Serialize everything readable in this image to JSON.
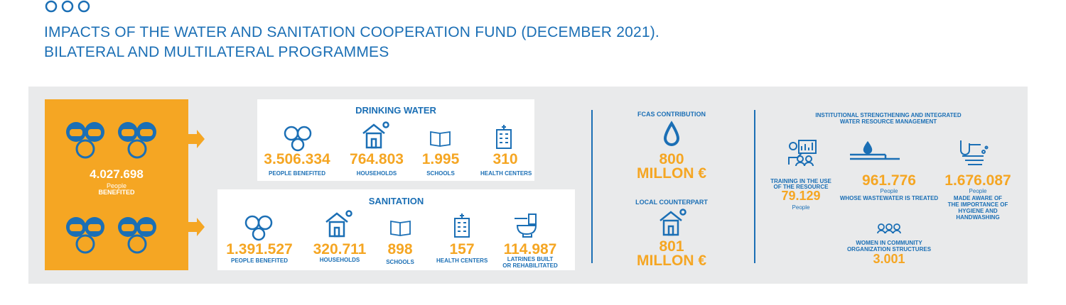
{
  "title": {
    "line1": "IMPACTS OF THE WATER AND SANITATION COOPERATION FUND (DECEMBER 2021).",
    "line2": "BILATERAL AND MULTILATERAL PROGRAMMES"
  },
  "total": {
    "value": "4.027.698",
    "unit": "People",
    "label": "BENEFITED"
  },
  "drinking_water": {
    "heading": "DRINKING WATER",
    "items": [
      {
        "value": "3.506.334",
        "label": "PEOPLE BENEFITED",
        "icon": "people-icon"
      },
      {
        "value": "764.803",
        "label": "HOUSEHOLDS",
        "icon": "house-icon"
      },
      {
        "value": "1.995",
        "label": "SCHOOLS",
        "icon": "book-icon"
      },
      {
        "value": "310",
        "label": "HEALTH CENTERS",
        "icon": "hospital-icon"
      }
    ]
  },
  "sanitation": {
    "heading": "SANITATION",
    "items": [
      {
        "value": "1.391.527",
        "label": "PEOPLE BENEFITED",
        "icon": "people-icon"
      },
      {
        "value": "320.711",
        "label": "HOUSEHOLDS",
        "icon": "house-icon"
      },
      {
        "value": "898",
        "label": "SCHOOLS",
        "icon": "book-icon"
      },
      {
        "value": "157",
        "label": "HEALTH CENTERS",
        "icon": "hospital-icon"
      },
      {
        "value": "114.987",
        "label1": "LATRINES BUILT",
        "label2": "OR REHABILITATED",
        "icon": "toilet-icon"
      }
    ]
  },
  "fcas": {
    "heading": "FCAS CONTRIBUTION",
    "value": "800",
    "unit": "MILLON €"
  },
  "local": {
    "heading": "LOCAL COUNTERPART",
    "value": "801",
    "unit": "MILLON €"
  },
  "institutional": {
    "heading1": "INSTITUTIONAL STRENGTHENING AND INTEGRATED",
    "heading2": "WATER RESOURCE MANAGEMENT",
    "training": {
      "label1": "TRAINING IN THE USE",
      "label2": "OF THE RESOURCE",
      "value": "79.129",
      "unit": "People"
    },
    "wastewater": {
      "value": "961.776",
      "unit": "People",
      "label": "WHOSE WASTEWATER IS TREATED"
    },
    "hygiene": {
      "value": "1.676.087",
      "unit": "People",
      "label1": "MADE AWARE OF",
      "label2": "THE IMPORTANCE OF",
      "label3": "HYGIENE AND",
      "label4": "HANDWASHING"
    },
    "women": {
      "label1": "WOMEN IN COMMUNITY",
      "label2": "ORGANIZATION STRUCTURES",
      "value": "3.001"
    }
  },
  "colors": {
    "brand_blue": "#1b6fb5",
    "accent_orange": "#f5a623",
    "panel_gray": "#e9eaeb"
  }
}
